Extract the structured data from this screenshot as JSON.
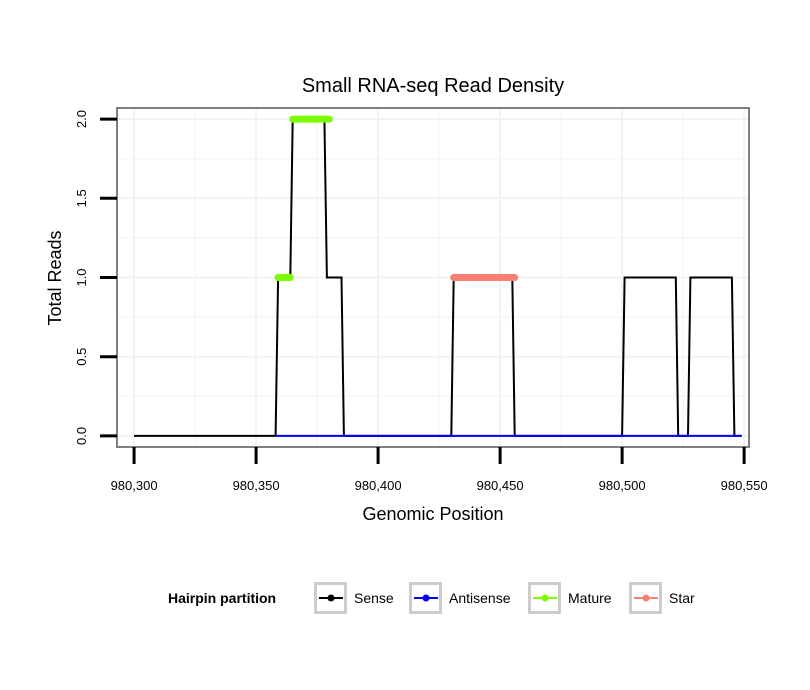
{
  "chart_data": {
    "type": "line",
    "title": "Small RNA-seq Read Density",
    "xlabel": "Genomic Position",
    "ylabel": "Total Reads",
    "xlim": [
      980293,
      980552
    ],
    "ylim": [
      -0.07,
      2.07
    ],
    "x_ticks": [
      980300,
      980350,
      980400,
      980450,
      980500,
      980550
    ],
    "x_tick_labels": [
      "980,300",
      "980,350",
      "980,400",
      "980,450",
      "980,500",
      "980,550"
    ],
    "y_ticks": [
      0,
      0.5,
      1,
      1.5,
      2
    ],
    "y_tick_labels": [
      "0.0",
      "0.5",
      "1.0",
      "1.5",
      "2.0"
    ],
    "grid": true,
    "legend": {
      "title": "Hairpin partition",
      "position": "bottom",
      "entries": [
        "Sense",
        "Antisense",
        "Mature",
        "Star"
      ]
    },
    "series": [
      {
        "name": "Sense",
        "color": "#000000",
        "x": [
          980300,
          980358,
          980359,
          980364,
          980365,
          980378,
          980379,
          980385,
          980386,
          980430,
          980431,
          980455,
          980456,
          980500,
          980501,
          980522,
          980523,
          980527,
          980528,
          980545,
          980546,
          980549
        ],
        "y": [
          0,
          0,
          1,
          1,
          2,
          2,
          1,
          1,
          0,
          0,
          1,
          1,
          0,
          0,
          1,
          1,
          0,
          0,
          1,
          1,
          0,
          0
        ]
      },
      {
        "name": "Antisense",
        "color": "#0000ff",
        "x": [
          980358,
          980549
        ],
        "y": [
          0,
          0
        ]
      },
      {
        "name": "Mature",
        "color": "#7cfc00",
        "segments": [
          {
            "x": [
              980359,
              980364
            ],
            "y": [
              1,
              1
            ]
          },
          {
            "x": [
              980365,
              980380
            ],
            "y": [
              2,
              2
            ]
          }
        ]
      },
      {
        "name": "Star",
        "color": "#fa8072",
        "segments": [
          {
            "x": [
              980431,
              980456
            ],
            "y": [
              1,
              1
            ]
          }
        ]
      }
    ]
  }
}
